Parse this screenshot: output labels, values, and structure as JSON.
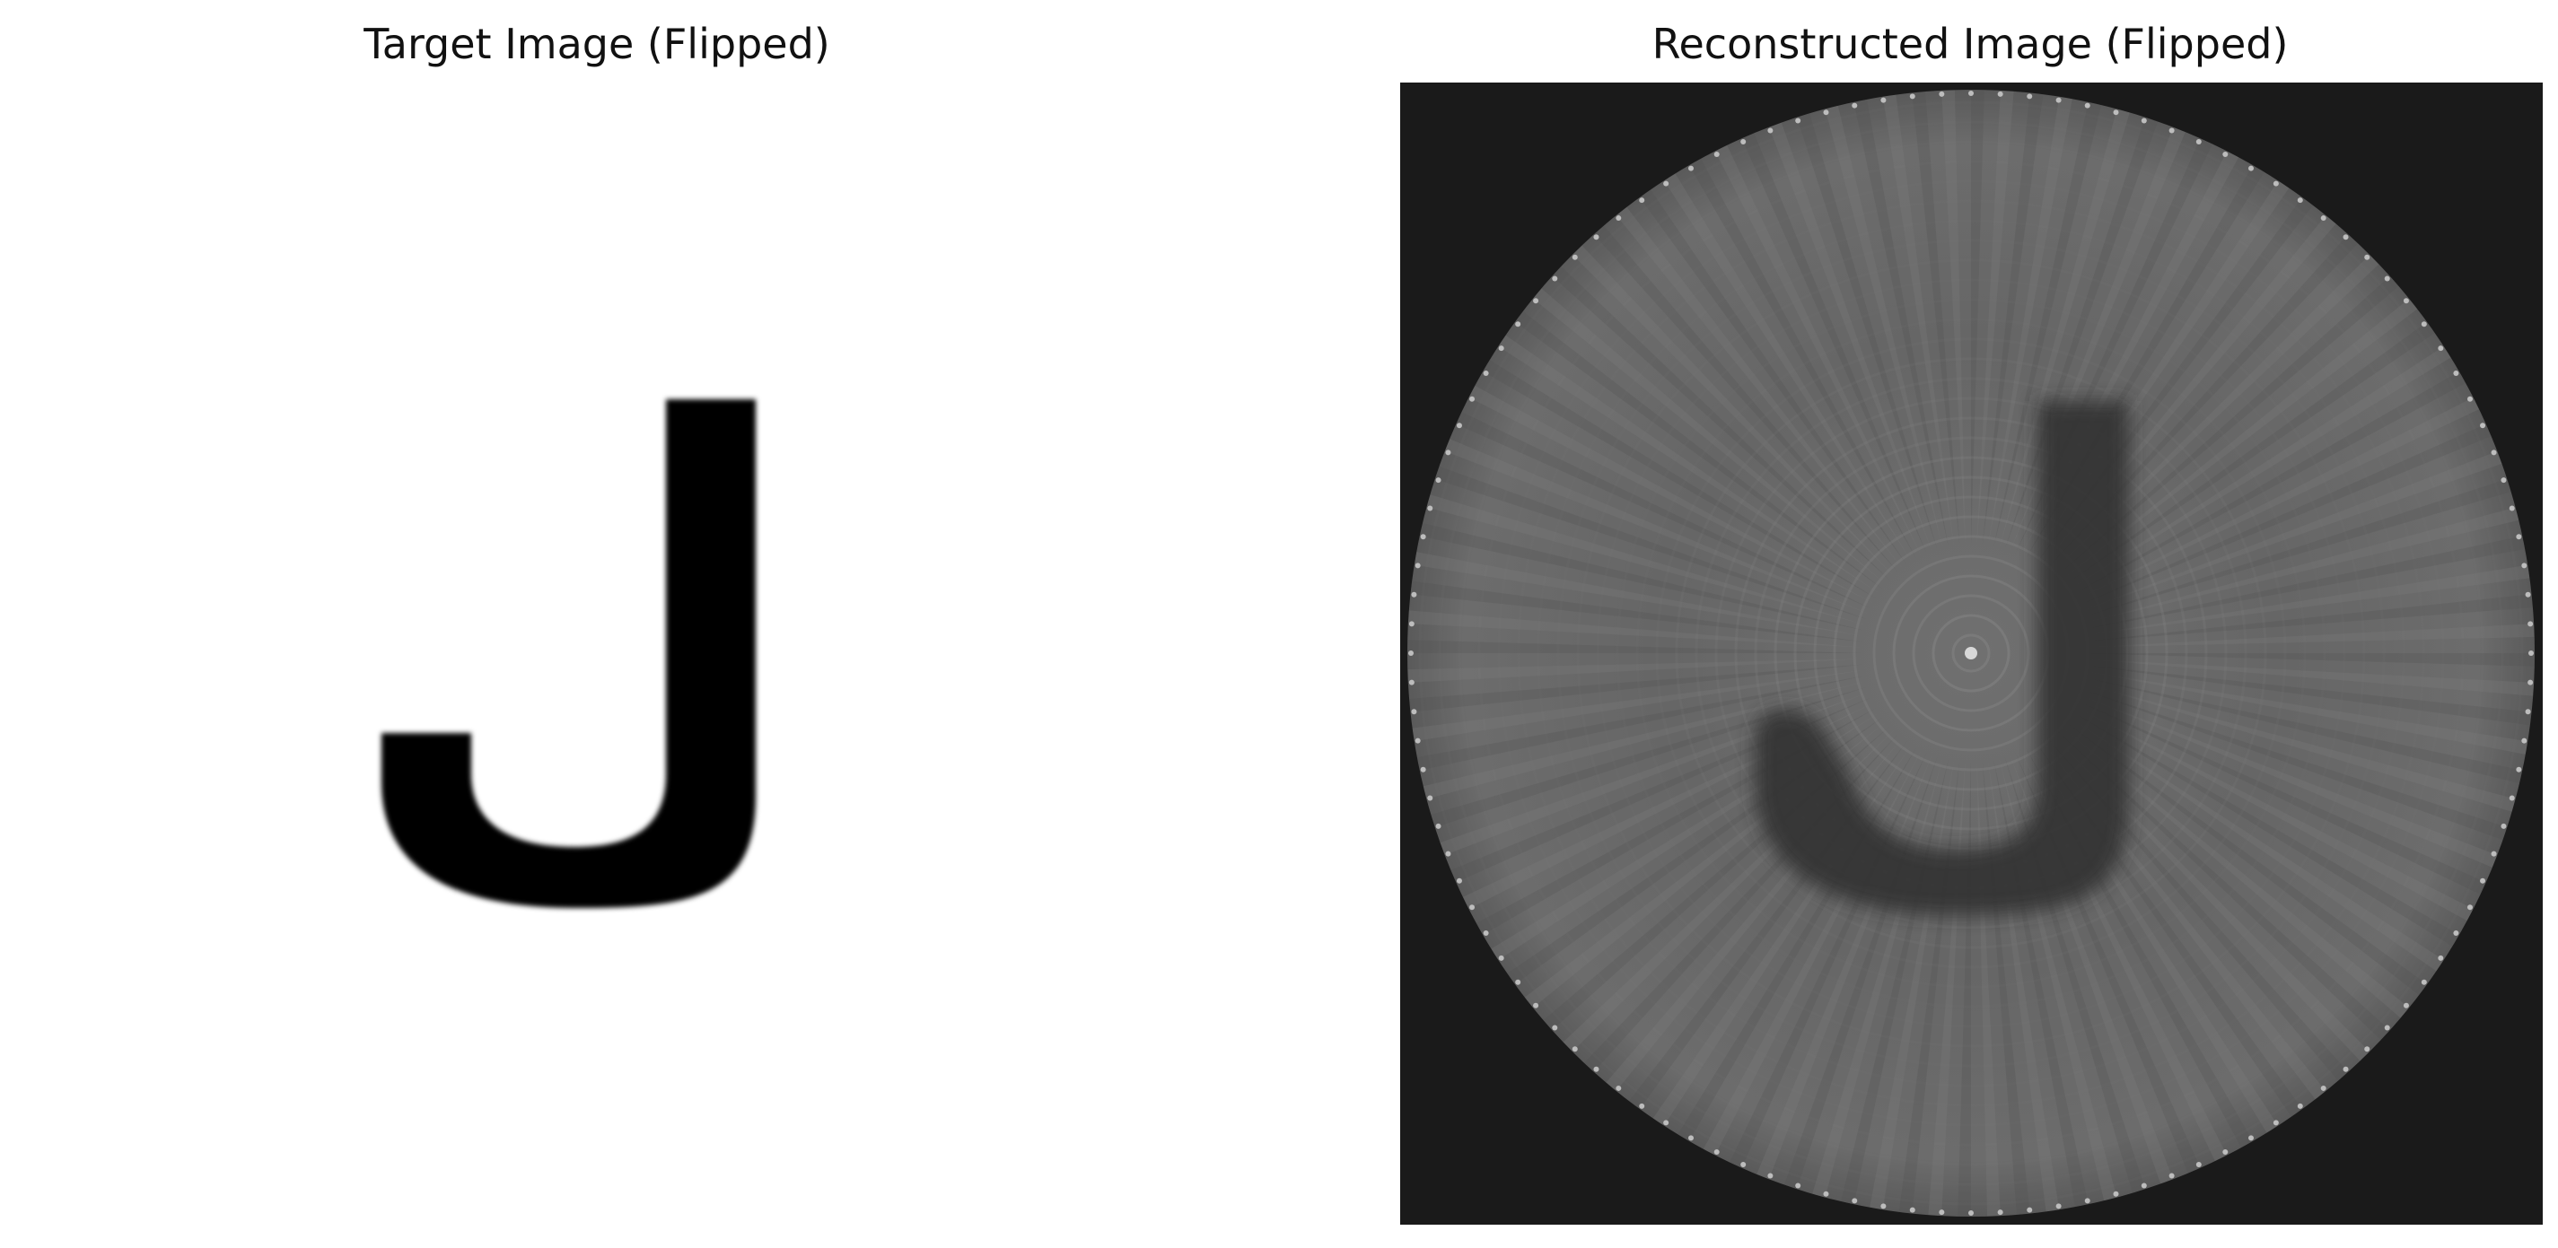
{
  "panels": {
    "left": {
      "title": "Target Image (Flipped)"
    },
    "right": {
      "title": "Reconstructed Image (Flipped)"
    }
  },
  "colors": {
    "background": "#ffffff",
    "letter_target": "#000000",
    "recon_background": "#1a1a1a",
    "recon_disk": "#6a6a6a",
    "recon_letter": "#3a3a3a"
  },
  "images": {
    "target": {
      "content": "letter-J"
    },
    "reconstructed": {
      "content": "letter-J"
    }
  }
}
